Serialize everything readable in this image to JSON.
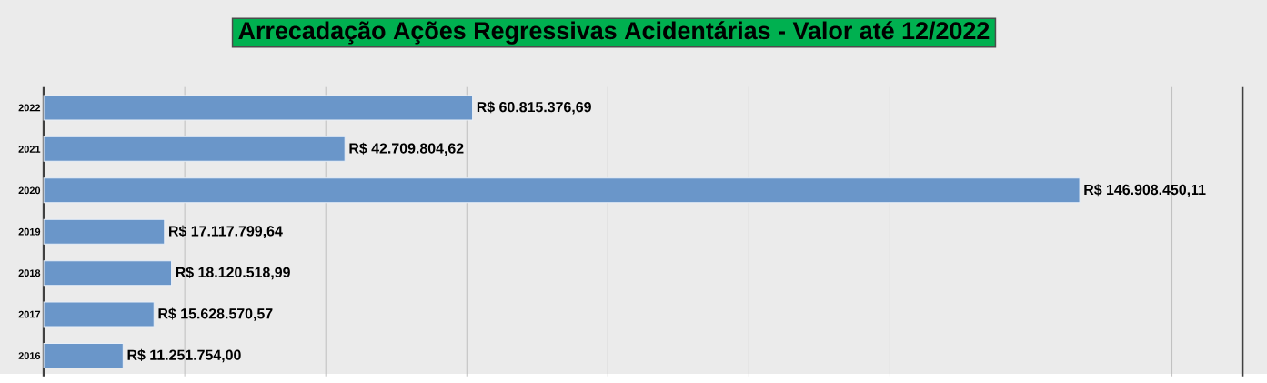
{
  "chart_data": {
    "type": "bar",
    "orientation": "horizontal",
    "title": "Arrecadação Ações Regressivas Acidentárias - Valor até 12/2022",
    "categories": [
      "2022",
      "2021",
      "2020",
      "2019",
      "2018",
      "2017",
      "2016"
    ],
    "values": [
      60815376.69,
      42709804.62,
      146908450.11,
      17117799.64,
      18120518.99,
      15628570.57,
      11251754.0
    ],
    "value_labels": [
      "R$ 60.815.376,69",
      "R$ 42.709.804,62",
      "R$ 146.908.450,11",
      "R$ 17.117.799,64",
      "R$ 18.120.518,99",
      "R$ 15.628.570,57",
      "R$ 11.251.754,00"
    ],
    "color": "#6a96c9",
    "xlim": [
      0,
      170000000
    ],
    "xticks": [
      {
        "value": 0,
        "label": null
      },
      {
        "value": 20000000,
        "label": null
      },
      {
        "value": 40000000,
        "label": null
      },
      {
        "value": 60000000,
        "label": null
      },
      {
        "value": 80000000,
        "label": null
      },
      {
        "value": 100000000,
        "label": null
      },
      {
        "value": 120000000,
        "label": null
      },
      {
        "value": 140000000,
        "label": null
      },
      {
        "value": 160000000,
        "label": null
      }
    ],
    "grid": "x",
    "tick_labels": "y"
  }
}
